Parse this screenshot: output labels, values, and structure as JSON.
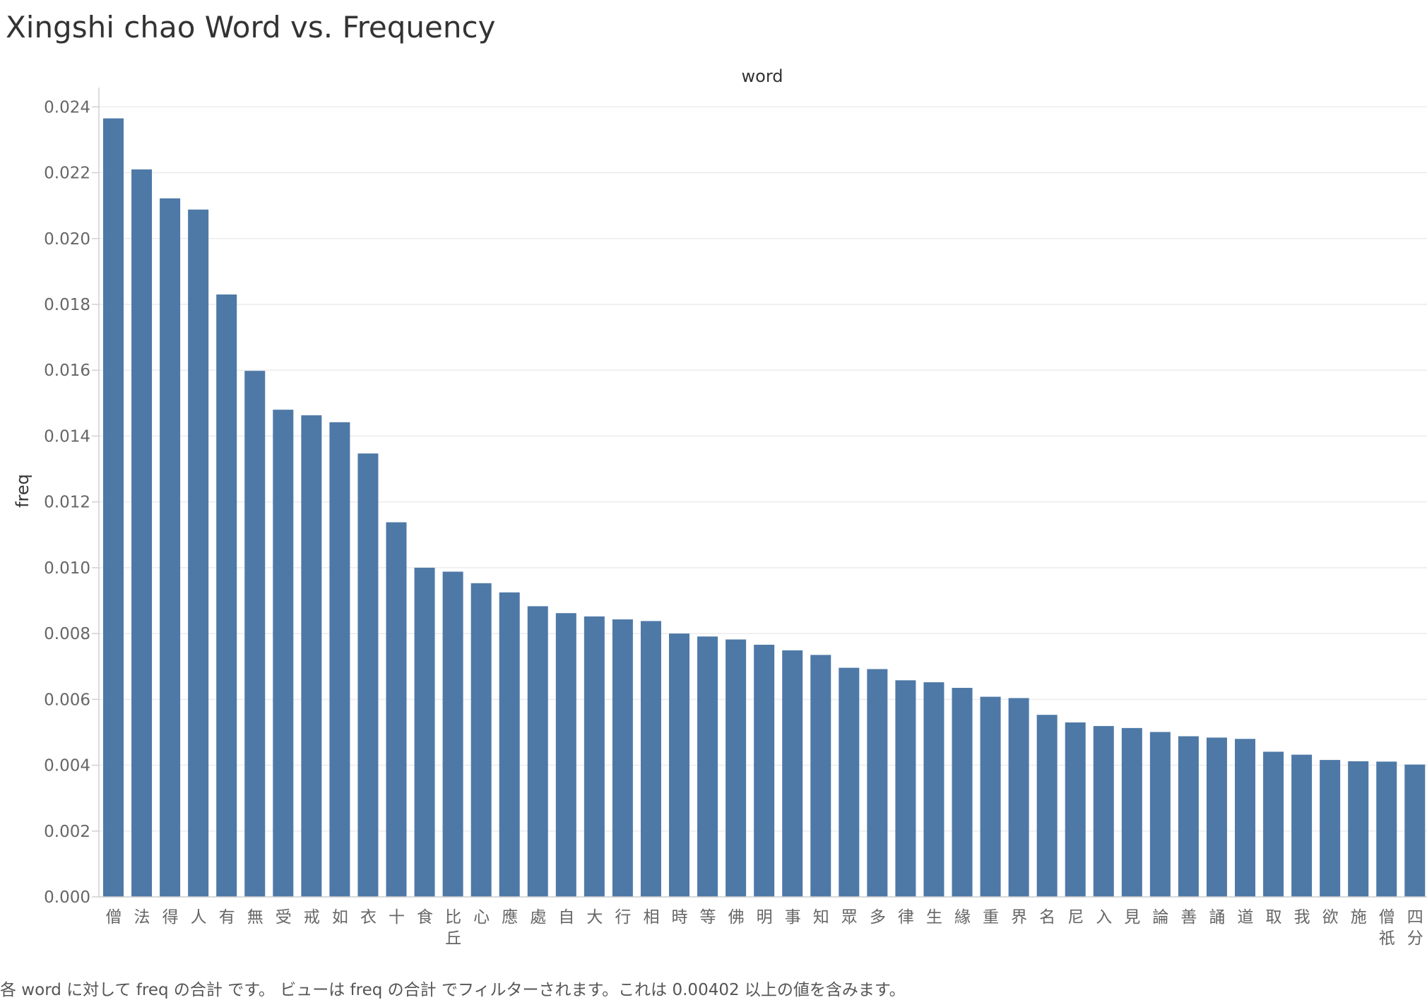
{
  "title": "Xingshi chao Word vs. Frequency",
  "footnote": "各 word に対して freq の合計 です。 ビューは freq の合計 でフィルターされます。これは 0.00402 以上の値を含みます。",
  "colors": {
    "bar": "#4e79a7",
    "grid": "#ececec",
    "axis": "#d0d0d0"
  },
  "chart_data": {
    "type": "bar",
    "title": "Xingshi chao Word vs. Frequency",
    "xlabel": "word",
    "ylabel": "freq",
    "ylim": [
      0,
      0.0245
    ],
    "yticks": [
      "0.000",
      "0.002",
      "0.004",
      "0.006",
      "0.008",
      "0.010",
      "0.012",
      "0.014",
      "0.016",
      "0.018",
      "0.020",
      "0.022",
      "0.024"
    ],
    "grid": true,
    "categories": [
      "僧",
      "法",
      "得",
      "人",
      "有",
      "無",
      "受",
      "戒",
      "如",
      "衣",
      "十",
      "食",
      "比丘",
      "心",
      "應",
      "處",
      "自",
      "大",
      "行",
      "相",
      "時",
      "等",
      "佛",
      "明",
      "事",
      "知",
      "眾",
      "多",
      "律",
      "生",
      "緣",
      "重",
      "界",
      "名",
      "尼",
      "入",
      "見",
      "論",
      "善",
      "誦",
      "道",
      "取",
      "我",
      "欲",
      "施",
      "僧祇",
      "四分"
    ],
    "values": [
      0.02365,
      0.0221,
      0.02122,
      0.02088,
      0.0183,
      0.01598,
      0.0148,
      0.01463,
      0.01442,
      0.01347,
      0.01138,
      0.01,
      0.00988,
      0.00953,
      0.00925,
      0.00883,
      0.00862,
      0.00852,
      0.00843,
      0.00838,
      0.008,
      0.00791,
      0.00782,
      0.00766,
      0.00749,
      0.00735,
      0.00696,
      0.00692,
      0.00658,
      0.00652,
      0.00635,
      0.00608,
      0.00604,
      0.00553,
      0.0053,
      0.00519,
      0.00513,
      0.00501,
      0.00488,
      0.00484,
      0.0048,
      0.00441,
      0.00432,
      0.00416,
      0.00412,
      0.00411,
      0.00402
    ]
  }
}
